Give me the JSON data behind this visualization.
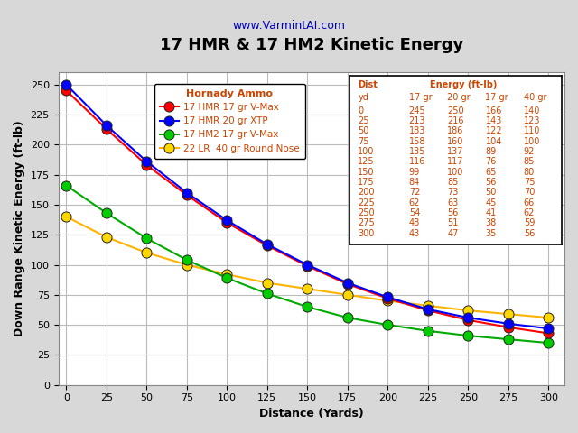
{
  "title": "17 HMR & 17 HM2 Kinetic Energy",
  "subtitle": "www.VarmintAI.com",
  "xlabel": "Distance (Yards)",
  "ylabel": "Down Range Kinetic Energy (ft-lb)",
  "distances": [
    0,
    25,
    50,
    75,
    100,
    125,
    150,
    175,
    200,
    225,
    250,
    275,
    300
  ],
  "series_order": [
    "17 HMR 17 gr V-Max",
    "17 HMR 20 gr XTP",
    "17 HM2 17 gr V-Max",
    "22 LR  40 gr Round Nose"
  ],
  "series": {
    "17 HMR 17 gr V-Max": {
      "values": [
        245,
        213,
        183,
        158,
        135,
        116,
        99,
        84,
        72,
        62,
        54,
        48,
        43
      ],
      "line_color": "#FF0000",
      "marker_face": "#FF0000",
      "zorder": 4
    },
    "17 HMR 20 gr XTP": {
      "values": [
        250,
        216,
        186,
        160,
        137,
        117,
        100,
        85,
        73,
        63,
        56,
        51,
        47
      ],
      "line_color": "#0000FF",
      "marker_face": "#0000FF",
      "zorder": 5
    },
    "17 HM2 17 gr V-Max": {
      "values": [
        166,
        143,
        122,
        104,
        89,
        76,
        65,
        56,
        50,
        45,
        41,
        38,
        35
      ],
      "line_color": "#00AA00",
      "marker_face": "#00CC00",
      "zorder": 3
    },
    "22 LR  40 gr Round Nose": {
      "values": [
        140,
        123,
        110,
        100,
        92,
        85,
        80,
        75,
        70,
        66,
        62,
        59,
        56
      ],
      "line_color": "#FFB300",
      "marker_face": "#FFD700",
      "zorder": 2
    }
  },
  "legend_title": "Hornady Ammo",
  "ylim": [
    0,
    260
  ],
  "yticks": [
    0,
    25,
    50,
    75,
    100,
    125,
    150,
    175,
    200,
    225,
    250
  ],
  "bg_color": "#D8D8D8",
  "plot_bg_color": "#FFFFFF",
  "grid_color": "#BBBBBB",
  "title_fontsize": 13,
  "subtitle_fontsize": 9,
  "axis_label_fontsize": 9,
  "tick_fontsize": 8,
  "table_distances": [
    0,
    25,
    50,
    75,
    100,
    125,
    150,
    175,
    200,
    225,
    250,
    275,
    300
  ],
  "table_col1": [
    245,
    213,
    183,
    158,
    135,
    116,
    99,
    84,
    72,
    62,
    54,
    48,
    43
  ],
  "table_col2": [
    250,
    216,
    186,
    160,
    137,
    117,
    100,
    85,
    73,
    63,
    56,
    51,
    47
  ],
  "table_col3": [
    166,
    143,
    122,
    104,
    89,
    76,
    65,
    56,
    50,
    45,
    41,
    38,
    35
  ],
  "table_col4": [
    140,
    123,
    110,
    100,
    92,
    85,
    80,
    75,
    70,
    66,
    62,
    59,
    56
  ],
  "text_color": "#CC4400",
  "marker_edge_color": "#222222",
  "marker_size": 8
}
